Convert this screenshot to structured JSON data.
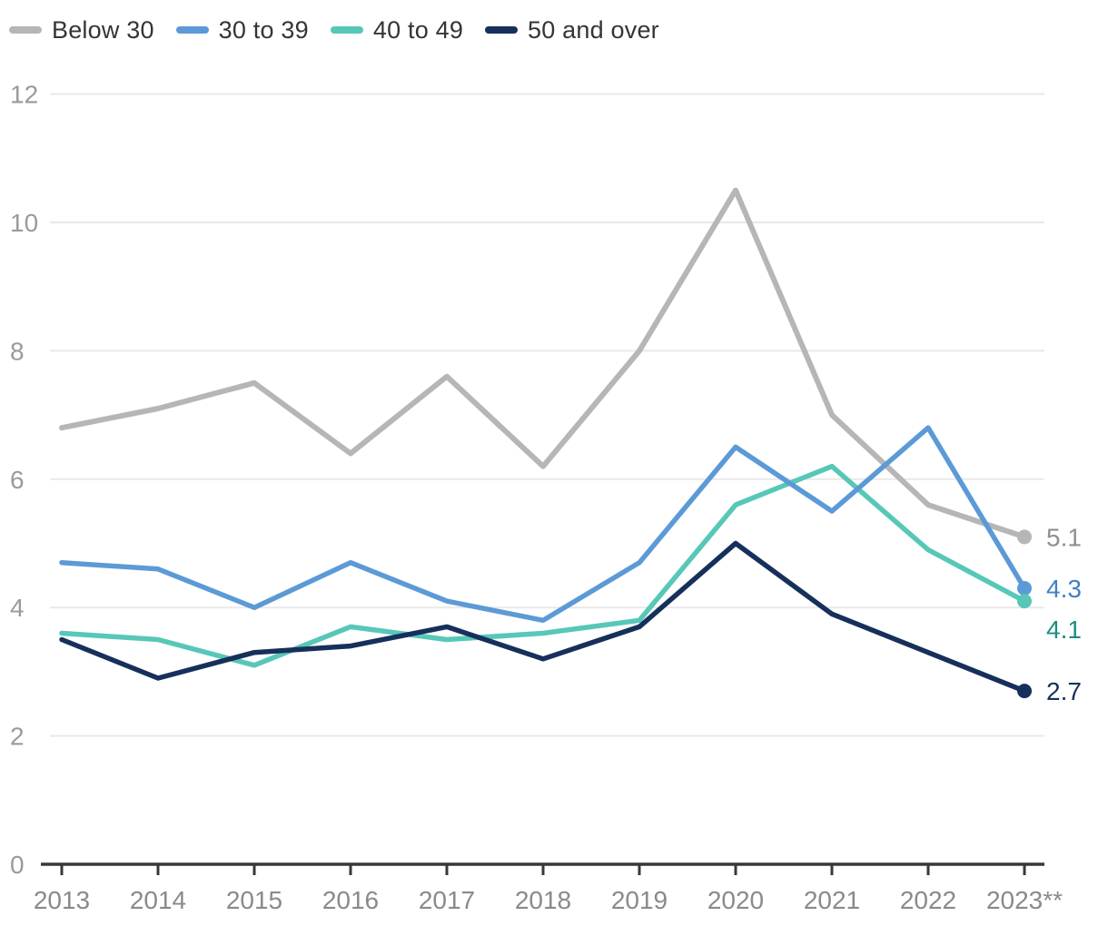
{
  "chart_data": {
    "type": "line",
    "title": "",
    "xlabel": "",
    "ylabel": "",
    "x": [
      "2013",
      "2014",
      "2015",
      "2016",
      "2017",
      "2018",
      "2019",
      "2020",
      "2021",
      "2022",
      "2023**"
    ],
    "ylim": [
      0,
      12
    ],
    "yticks": [
      0,
      2,
      4,
      6,
      8,
      10,
      12
    ],
    "grid": "horizontal",
    "legend_position": "top-left",
    "series": [
      {
        "name": "Below 30",
        "color": "#b6b6b6",
        "label_color": "#909090",
        "end_label": "5.1",
        "values": [
          6.8,
          7.1,
          7.5,
          6.4,
          7.6,
          6.2,
          8.0,
          10.5,
          7.0,
          5.6,
          5.1
        ]
      },
      {
        "name": "30 to 39",
        "color": "#5b9ad6",
        "label_color": "#3f83c4",
        "end_label": "4.3",
        "values": [
          4.7,
          4.6,
          4.0,
          4.7,
          4.1,
          3.8,
          4.7,
          6.5,
          5.5,
          6.8,
          4.3
        ]
      },
      {
        "name": "40 to 49",
        "color": "#57c7b8",
        "label_color": "#1d8e81",
        "end_label": "4.1",
        "values": [
          3.6,
          3.5,
          3.1,
          3.7,
          3.5,
          3.6,
          3.8,
          5.6,
          6.2,
          4.9,
          4.1
        ]
      },
      {
        "name": "50 and over",
        "color": "#16305b",
        "label_color": "#16305b",
        "end_label": "2.7",
        "values": [
          3.5,
          2.9,
          3.3,
          3.4,
          3.7,
          3.2,
          3.7,
          5.0,
          3.9,
          3.3,
          2.7
        ]
      }
    ]
  },
  "colors": {
    "grid": "#e9e9e9",
    "axis": "#383838",
    "x_tick_label": "#8a8a8a",
    "y_tick_label": "#9a9a9a",
    "legend_text": "#353535"
  }
}
